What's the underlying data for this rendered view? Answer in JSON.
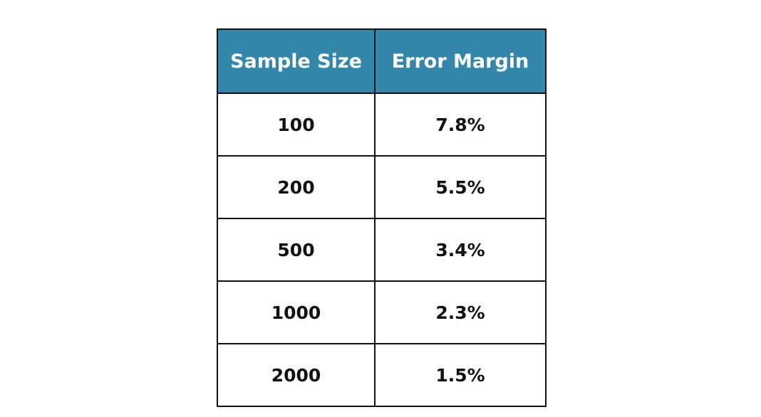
{
  "table": {
    "header": [
      "Sample Size",
      "Error Margin"
    ],
    "rows": [
      [
        "100",
        "7.8%"
      ],
      [
        "200",
        "5.5%"
      ],
      [
        "500",
        "3.4%"
      ],
      [
        "1000",
        "2.3%"
      ],
      [
        "2000",
        "1.5%"
      ]
    ]
  }
}
